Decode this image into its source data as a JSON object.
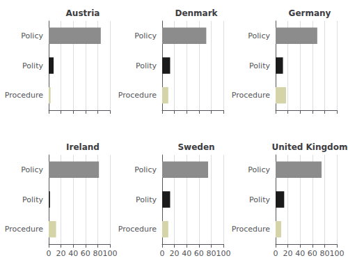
{
  "chart_data": [
    {
      "type": "bar",
      "orientation": "horizontal",
      "title": "Austria",
      "categories": [
        "Policy",
        "Polity",
        "Procedure"
      ],
      "values": [
        85,
        8,
        3
      ],
      "colors": [
        "#8c8c8c",
        "#1a1a1a",
        "#d4d4a8"
      ],
      "xlim": [
        0,
        100
      ],
      "xticks": [
        0,
        20,
        40,
        60,
        80,
        100
      ],
      "grid": true,
      "tick_labels": "y"
    },
    {
      "type": "bar",
      "orientation": "horizontal",
      "title": "Denmark",
      "categories": [
        "Policy",
        "Polity",
        "Procedure"
      ],
      "values": [
        72,
        13,
        10
      ],
      "colors": [
        "#8c8c8c",
        "#1a1a1a",
        "#d4d4a8"
      ],
      "xlim": [
        0,
        100
      ],
      "xticks": [
        0,
        20,
        40,
        60,
        80,
        100
      ],
      "grid": true,
      "tick_labels": "y"
    },
    {
      "type": "bar",
      "orientation": "horizontal",
      "title": "Germany",
      "categories": [
        "Policy",
        "Polity",
        "Procedure"
      ],
      "values": [
        68,
        12,
        17
      ],
      "colors": [
        "#8c8c8c",
        "#1a1a1a",
        "#d4d4a8"
      ],
      "xlim": [
        0,
        100
      ],
      "xticks": [
        0,
        20,
        40,
        60,
        80,
        100
      ],
      "grid": true,
      "tick_labels": "y"
    },
    {
      "type": "bar",
      "orientation": "horizontal",
      "title": "Ireland",
      "categories": [
        "Policy",
        "Polity",
        "Procedure"
      ],
      "values": [
        82,
        2,
        12
      ],
      "colors": [
        "#8c8c8c",
        "#1a1a1a",
        "#d4d4a8"
      ],
      "xlim": [
        0,
        100
      ],
      "xticks": [
        0,
        20,
        40,
        60,
        80,
        100
      ],
      "grid": true
    },
    {
      "type": "bar",
      "orientation": "horizontal",
      "title": "Sweden",
      "categories": [
        "Policy",
        "Polity",
        "Procedure"
      ],
      "values": [
        75,
        13,
        10
      ],
      "colors": [
        "#8c8c8c",
        "#1a1a1a",
        "#d4d4a8"
      ],
      "xlim": [
        0,
        100
      ],
      "xticks": [
        0,
        20,
        40,
        60,
        80,
        100
      ],
      "grid": true
    },
    {
      "type": "bar",
      "orientation": "horizontal",
      "title": "United Kingdom",
      "categories": [
        "Policy",
        "Polity",
        "Procedure"
      ],
      "values": [
        75,
        14,
        9
      ],
      "colors": [
        "#8c8c8c",
        "#1a1a1a",
        "#d4d4a8"
      ],
      "xlim": [
        0,
        100
      ],
      "xticks": [
        0,
        20,
        40,
        60,
        80,
        100
      ],
      "grid": true
    }
  ]
}
